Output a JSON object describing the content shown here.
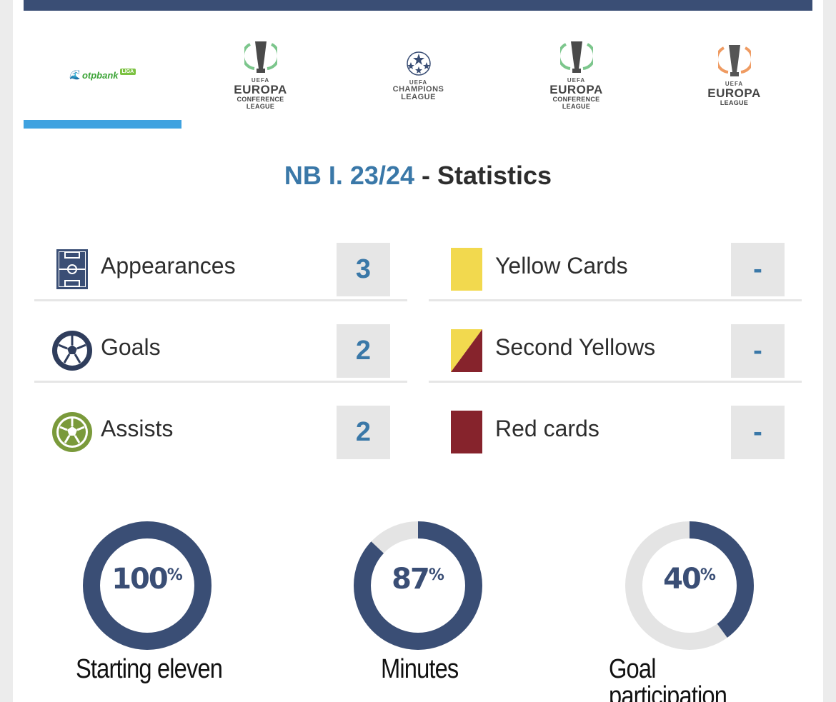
{
  "colors": {
    "header_bar": "#3a4e75",
    "tab_indicator": "#3fa2e0",
    "season_text": "#3a78a8",
    "value_text": "#3a78a8",
    "donut_fill": "#3a4e75",
    "donut_track": "#e4e4e4",
    "yellow_card": "#f2d94e",
    "red_card": "#86232c",
    "assists_green": "#7a9a3b"
  },
  "competition_tabs": [
    {
      "name": "otpbank",
      "sub": "LIGA",
      "icon": "otpbank-liga-logo",
      "active": true
    },
    {
      "uefa": "UEFA",
      "name": "EUROPA",
      "sub1": "CONFERENCE",
      "sub2": "LEAGUE",
      "icon": "uefa-conference-league-logo"
    },
    {
      "uefa": "UEFA",
      "name": "CHAMPIONS",
      "sub2": "LEAGUE",
      "icon": "uefa-champions-league-logo"
    },
    {
      "uefa": "UEFA",
      "name": "EUROPA",
      "sub1": "CONFERENCE",
      "sub2": "LEAGUE",
      "icon": "uefa-conference-league-logo"
    },
    {
      "uefa": "UEFA",
      "name": "EUROPA",
      "sub2": "LEAGUE",
      "icon": "uefa-europa-league-logo"
    }
  ],
  "title": {
    "season": "NB I. 23/24",
    "separator": " - ",
    "label": "Statistics"
  },
  "stats_left": [
    {
      "label": "Appearances",
      "value": "3",
      "icon": "pitch-icon"
    },
    {
      "label": "Goals",
      "value": "2",
      "icon": "ball-icon"
    },
    {
      "label": "Assists",
      "value": "2",
      "icon": "assist-ball-icon"
    }
  ],
  "stats_right": [
    {
      "label": "Yellow Cards",
      "value": "-",
      "icon": "yellow-card-icon"
    },
    {
      "label": "Second Yellows",
      "value": "-",
      "icon": "second-yellow-card-icon"
    },
    {
      "label": "Red cards",
      "value": "-",
      "icon": "red-card-icon"
    }
  ],
  "donuts": [
    {
      "label": "Starting eleven",
      "value": "100",
      "unit": "%",
      "fraction": 1.0
    },
    {
      "label": "Minutes",
      "value": "87",
      "unit": "%",
      "fraction": 0.87
    },
    {
      "label": "Goal participation",
      "value": "40",
      "unit": "%",
      "fraction": 0.4
    }
  ]
}
